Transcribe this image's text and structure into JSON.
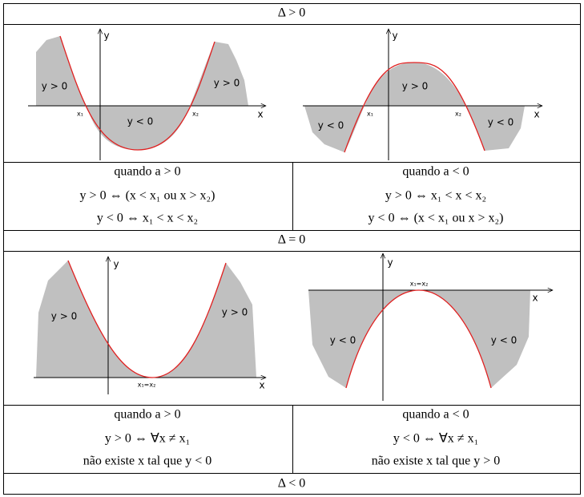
{
  "sections": [
    {
      "heading": "Δ > 0",
      "panels": [
        {
          "labels": [
            "y",
            "x",
            "y > 0",
            "y < 0",
            "y > 0",
            "x₁",
            "x₂"
          ],
          "caption": [
            "quando a > 0",
            "y > 0 ⇔ (x < x₁ ou x > x₂)",
            "y < 0 ⇔ x₁ < x < x₂"
          ]
        },
        {
          "labels": [
            "y",
            "x",
            "y > 0",
            "y < 0",
            "y < 0",
            "x₁",
            "x₂"
          ],
          "caption": [
            "quando a < 0",
            "y > 0 ⇔ x₁ < x < x₂",
            "y < 0 ⇔ (x < x₁ ou x > x₂)"
          ]
        }
      ]
    },
    {
      "heading": "Δ = 0",
      "panels": [
        {
          "labels": [
            "y",
            "x",
            "y > 0",
            "y > 0",
            "x₁=x₂"
          ],
          "caption": [
            "quando a > 0",
            "y > 0 ⇔ ∀x ≠ x₁",
            "não existe x tal que y < 0"
          ]
        },
        {
          "labels": [
            "y",
            "x",
            "y < 0",
            "y < 0",
            "x₁=x₂"
          ],
          "caption": [
            "quando a < 0",
            "y < 0 ⇔ ∀x ≠ x₁",
            "não existe x tal que y > 0"
          ]
        }
      ]
    },
    {
      "heading": "Δ < 0"
    }
  ]
}
